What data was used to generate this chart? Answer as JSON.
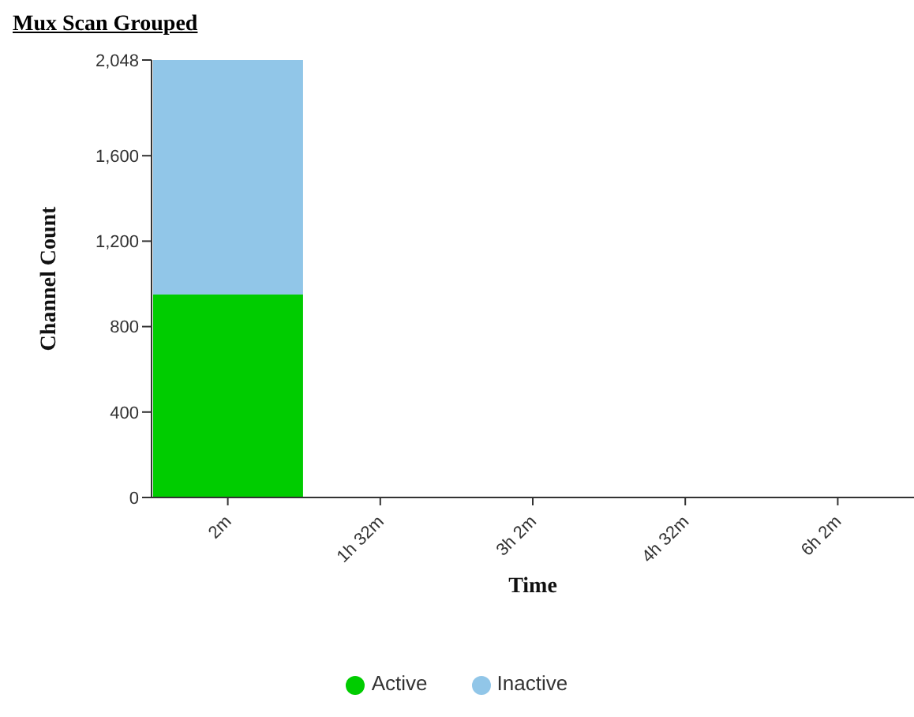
{
  "chart_data": {
    "type": "bar",
    "title": "Mux Scan Grouped",
    "xlabel": "Time",
    "ylabel": "Channel Count",
    "categories": [
      "2m",
      "1h 32m",
      "3h 2m",
      "4h 32m",
      "6h 2m"
    ],
    "stacked": true,
    "series": [
      {
        "name": "Active",
        "color": "#00cc00",
        "values": [
          950,
          null,
          null,
          null,
          null
        ]
      },
      {
        "name": "Inactive",
        "color": "#91c6e8",
        "values": [
          1098,
          null,
          null,
          null,
          null
        ]
      }
    ],
    "ylim": [
      0,
      2048
    ],
    "yticks": [
      {
        "value": 0,
        "label": "0"
      },
      {
        "value": 400,
        "label": "400"
      },
      {
        "value": 800,
        "label": "800"
      },
      {
        "value": 1200,
        "label": "1,200"
      },
      {
        "value": 1600,
        "label": "1,600"
      },
      {
        "value": 2048,
        "label": "2,048"
      }
    ],
    "grid": false,
    "legend": "bottom"
  }
}
